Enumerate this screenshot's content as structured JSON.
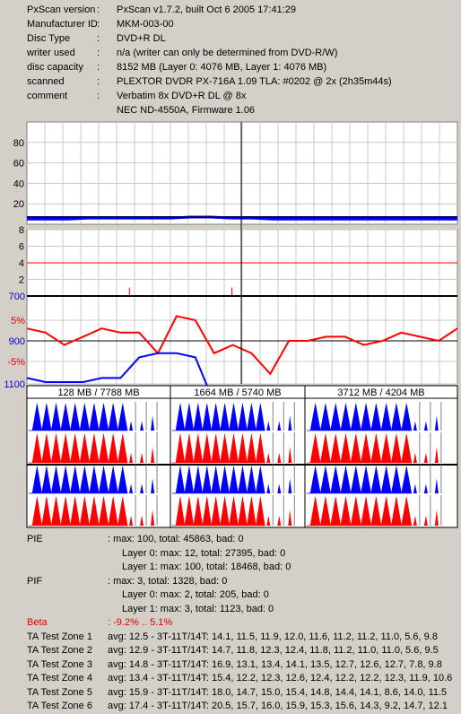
{
  "header": {
    "rows": [
      {
        "key": "PxScan version",
        "value": "PxScan v1.7.2, built Oct  6 2005 17:41:29"
      },
      {
        "key": "Manufacturer ID",
        "value": "MKM-003-00"
      },
      {
        "key": "Disc Type",
        "value": "DVD+R DL"
      },
      {
        "key": "writer used",
        "value": "n/a (writer can only be determined from DVD-R/W)"
      },
      {
        "key": "disc capacity",
        "value": "8152 MB (Layer 0: 4076 MB,  Layer 1: 4076 MB)"
      },
      {
        "key": "scanned",
        "value": "PLEXTOR DVDR  PX-716A 1.09 TLA: #0202 @ 2x (2h35m44s)"
      },
      {
        "key": "comment",
        "value": "Verbatim 8x DVD+R DL @ 8x"
      },
      {
        "key": "",
        "value": "NEC ND-4550A, Firmware 1.06"
      }
    ]
  },
  "chart_data": [
    {
      "type": "line",
      "name": "PIE",
      "yticks": [
        20,
        40,
        60,
        80
      ],
      "ylim": [
        0,
        100
      ],
      "series": [
        {
          "color": "#0000ff",
          "values": [
            5,
            5,
            5,
            6,
            6,
            6,
            6,
            6,
            7,
            7,
            6,
            6,
            5,
            5,
            5,
            5,
            5,
            5,
            5,
            5,
            5,
            5
          ]
        }
      ]
    },
    {
      "type": "line",
      "name": "PIF",
      "yticks": [
        2,
        4,
        6,
        8
      ],
      "ylim": [
        0,
        8
      ],
      "threshold": 4,
      "series": [
        {
          "color": "#ff0000",
          "values": [
            0,
            0,
            0,
            0,
            0,
            1,
            0,
            0,
            0,
            0,
            1,
            0,
            0,
            0,
            0,
            0,
            0,
            0,
            0,
            0,
            0,
            0
          ]
        }
      ]
    },
    {
      "type": "line",
      "name": "Beta / Jitter",
      "ytick_labels": [
        "700",
        "5%",
        "900",
        "-5%",
        "1100"
      ],
      "series": [
        {
          "color": "#ff0000",
          "values": [
            3,
            2,
            -1,
            1,
            3,
            2,
            2,
            -3,
            6,
            5,
            -3,
            -1,
            -3,
            -8,
            0,
            0,
            1,
            1,
            -1,
            0,
            2,
            1,
            0,
            3
          ]
        },
        {
          "color": "#0000ff",
          "values": [
            -9,
            -10,
            -10,
            -10,
            -9,
            -9,
            -4,
            -3,
            -3,
            -4,
            -15,
            -14,
            -14,
            -13,
            -13,
            -13,
            -14,
            -14,
            -15,
            -15,
            -14,
            -13,
            -13,
            -13
          ]
        }
      ]
    }
  ],
  "ta": {
    "headers": [
      "128 MB / 7788 MB",
      "1664 MB / 5740 MB",
      "3712 MB / 4204 MB"
    ]
  },
  "stats": {
    "pie_label": "PIE",
    "pie_total": ": max: 100, total: 45863, bad: 0",
    "pie_l0": "Layer 0: max: 12, total: 27395, bad: 0",
    "pie_l1": "Layer 1: max: 100, total: 18468, bad: 0",
    "pif_label": "PIF",
    "pif_total": ": max: 3, total: 1328, bad: 0",
    "pif_l0": "Layer 0: max: 2, total: 205, bad: 0",
    "pif_l1": "Layer 1: max: 3, total: 1123, bad: 0",
    "beta_label": "Beta",
    "beta_value": ": -9.2% .. 5.1%",
    "zones": [
      {
        "label": "TA Test Zone 1",
        "value": "avg: 12.5 - 3T-11T/14T: 14.1, 11.5, 11.9, 12.0, 11.6, 11.2, 11.2, 11.0, 5.6, 9.8"
      },
      {
        "label": "TA Test Zone 2",
        "value": "avg: 12.9 - 3T-11T/14T: 14.7, 11.8, 12.3, 12.4, 11.8, 11.2, 11.0, 11.0, 5.6, 9.5"
      },
      {
        "label": "TA Test Zone 3",
        "value": "avg: 14.8 - 3T-11T/14T: 16.9, 13.1, 13.4, 14.1, 13.5, 12.7, 12.6, 12.7, 7.8, 9.8"
      },
      {
        "label": "TA Test Zone 4",
        "value": "avg: 13.4 - 3T-11T/14T: 15.4, 12.2, 12.3, 12.6, 12.4, 12.2, 12.2, 12.3, 11.9, 10.6"
      },
      {
        "label": "TA Test Zone 5",
        "value": "avg: 15.9 - 3T-11T/14T: 18.0, 14.7, 15.0, 15.4, 14.8, 14.4, 14.1, 8.6, 14.0, 11.5"
      },
      {
        "label": "TA Test Zone 6",
        "value": "avg: 17.4 - 3T-11T/14T: 20.5, 15.7, 16.0, 15.9, 15.3, 15.6, 14.3, 9.2, 14.7, 12.1"
      }
    ]
  }
}
